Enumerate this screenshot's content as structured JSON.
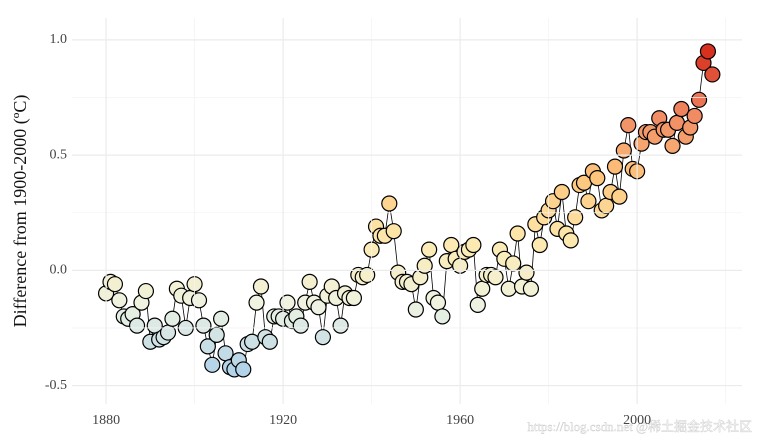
{
  "chart_data": {
    "type": "scatter-line",
    "y_label": "Difference from 1900-2000 (ºC)",
    "watermark": "https://blog.csdn.net  @稀土掘金技术社区",
    "x": [
      1880,
      1881,
      1882,
      1883,
      1884,
      1885,
      1886,
      1887,
      1888,
      1889,
      1890,
      1891,
      1892,
      1893,
      1894,
      1895,
      1896,
      1897,
      1898,
      1899,
      1900,
      1901,
      1902,
      1903,
      1904,
      1905,
      1906,
      1907,
      1908,
      1909,
      1910,
      1911,
      1912,
      1913,
      1914,
      1915,
      1916,
      1917,
      1918,
      1919,
      1920,
      1921,
      1922,
      1923,
      1924,
      1925,
      1926,
      1927,
      1928,
      1929,
      1930,
      1931,
      1932,
      1933,
      1934,
      1935,
      1936,
      1937,
      1938,
      1939,
      1940,
      1941,
      1942,
      1943,
      1944,
      1945,
      1946,
      1947,
      1948,
      1949,
      1950,
      1951,
      1952,
      1953,
      1954,
      1955,
      1956,
      1957,
      1958,
      1959,
      1960,
      1961,
      1962,
      1963,
      1964,
      1965,
      1966,
      1967,
      1968,
      1969,
      1970,
      1971,
      1972,
      1973,
      1974,
      1975,
      1976,
      1977,
      1978,
      1979,
      1980,
      1981,
      1982,
      1983,
      1984,
      1985,
      1986,
      1987,
      1988,
      1989,
      1990,
      1991,
      1992,
      1993,
      1994,
      1995,
      1996,
      1997,
      1998,
      1999,
      2000,
      2001,
      2002,
      2003,
      2004,
      2005,
      2006,
      2007,
      2008,
      2009,
      2010,
      2011,
      2012,
      2013,
      2014,
      2015,
      2016,
      2017
    ],
    "values": [
      -0.1,
      -0.05,
      -0.06,
      -0.13,
      -0.2,
      -0.21,
      -0.19,
      -0.24,
      -0.14,
      -0.09,
      -0.31,
      -0.24,
      -0.3,
      -0.29,
      -0.27,
      -0.21,
      -0.08,
      -0.11,
      -0.25,
      -0.12,
      -0.06,
      -0.13,
      -0.24,
      -0.33,
      -0.41,
      -0.28,
      -0.21,
      -0.36,
      -0.42,
      -0.43,
      -0.39,
      -0.43,
      -0.32,
      -0.31,
      -0.14,
      -0.07,
      -0.29,
      -0.31,
      -0.2,
      -0.2,
      -0.21,
      -0.14,
      -0.22,
      -0.2,
      -0.24,
      -0.14,
      -0.05,
      -0.14,
      -0.16,
      -0.29,
      -0.11,
      -0.07,
      -0.12,
      -0.24,
      -0.1,
      -0.12,
      -0.12,
      -0.02,
      -0.03,
      -0.02,
      0.09,
      0.19,
      0.15,
      0.15,
      0.29,
      0.17,
      -0.01,
      -0.05,
      -0.05,
      -0.06,
      -0.17,
      -0.03,
      0.02,
      0.09,
      -0.12,
      -0.14,
      -0.2,
      0.04,
      0.11,
      0.05,
      0.02,
      0.08,
      0.09,
      0.11,
      -0.15,
      -0.08,
      -0.02,
      -0.02,
      -0.03,
      0.09,
      0.05,
      -0.08,
      0.03,
      0.16,
      -0.07,
      -0.01,
      -0.08,
      0.2,
      0.11,
      0.23,
      0.26,
      0.3,
      0.18,
      0.34,
      0.16,
      0.13,
      0.23,
      0.37,
      0.38,
      0.3,
      0.43,
      0.4,
      0.26,
      0.28,
      0.34,
      0.45,
      0.32,
      0.52,
      0.63,
      0.44,
      0.43,
      0.55,
      0.6,
      0.6,
      0.58,
      0.66,
      0.61,
      0.61,
      0.54,
      0.64,
      0.7,
      0.58,
      0.62,
      0.67,
      0.74,
      0.9,
      0.95,
      0.85
    ],
    "colors": [
      "#b3d3e8",
      "#eef3e2",
      "#fdeab0",
      "#fdc67c",
      "#f08a63",
      "#d7301f"
    ],
    "line_color": "#000000",
    "xlim": [
      1872.3,
      2023.7
    ],
    "ylim": [
      -0.58,
      1.095
    ],
    "xticks": [
      1880,
      1920,
      1960,
      2000
    ],
    "yticks": [
      {
        "value": -0.5,
        "label": "-0.5"
      },
      {
        "value": 0,
        "label": "0.0"
      },
      {
        "value": 0.5,
        "label": "0.5"
      },
      {
        "value": 1,
        "label": "1.0"
      }
    ],
    "xminor": [
      1900,
      1940,
      1980,
      2020
    ],
    "yminor": [
      -0.25,
      0.25,
      0.75
    ],
    "grid": true
  }
}
